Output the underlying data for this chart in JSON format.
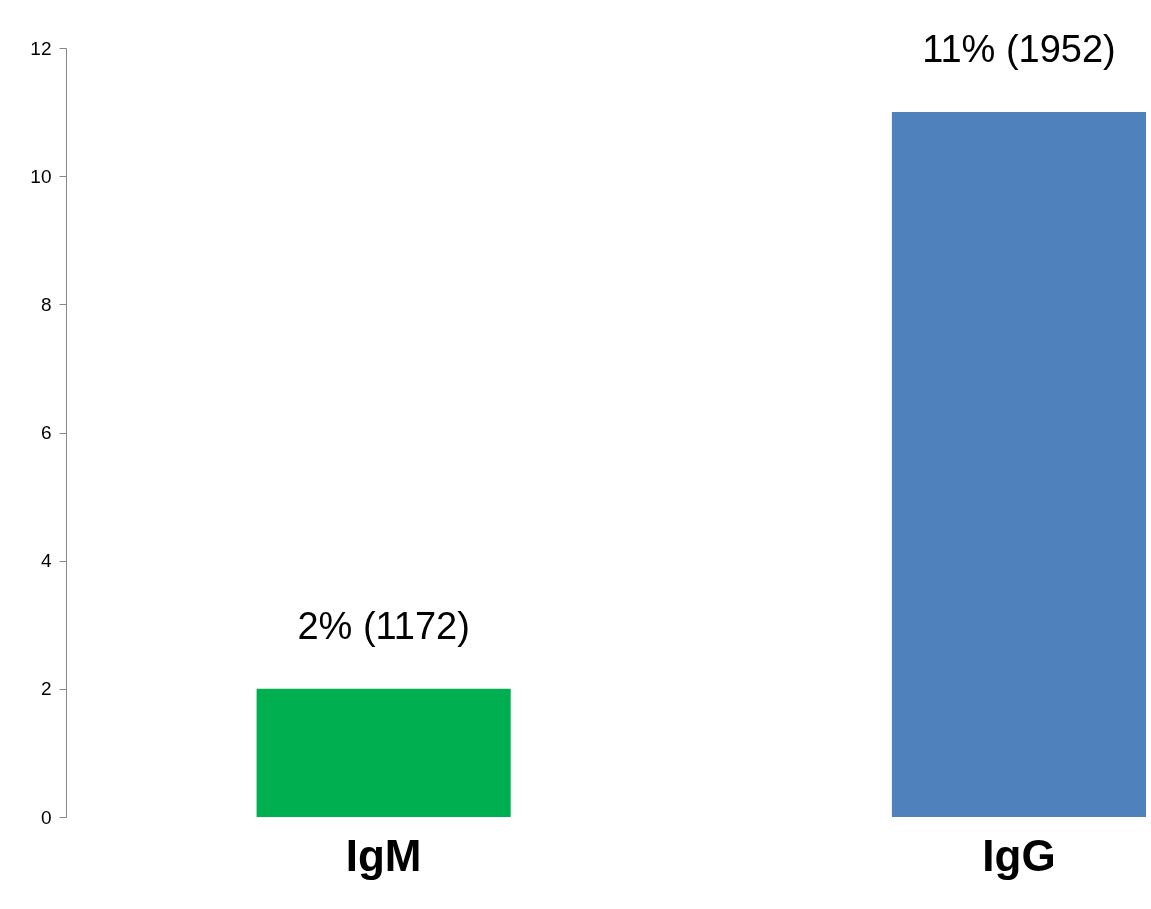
{
  "chart_data": {
    "type": "bar",
    "categories": [
      "IgM",
      "IgG"
    ],
    "values": [
      2,
      11
    ],
    "colors": [
      "#00b050",
      "#4f81bd"
    ],
    "value_labels": [
      "2% (1172)",
      "11% (1952)"
    ],
    "ylim": [
      0,
      12
    ],
    "yticks": [
      0,
      2,
      4,
      6,
      8,
      10,
      12
    ],
    "grid": false
  }
}
